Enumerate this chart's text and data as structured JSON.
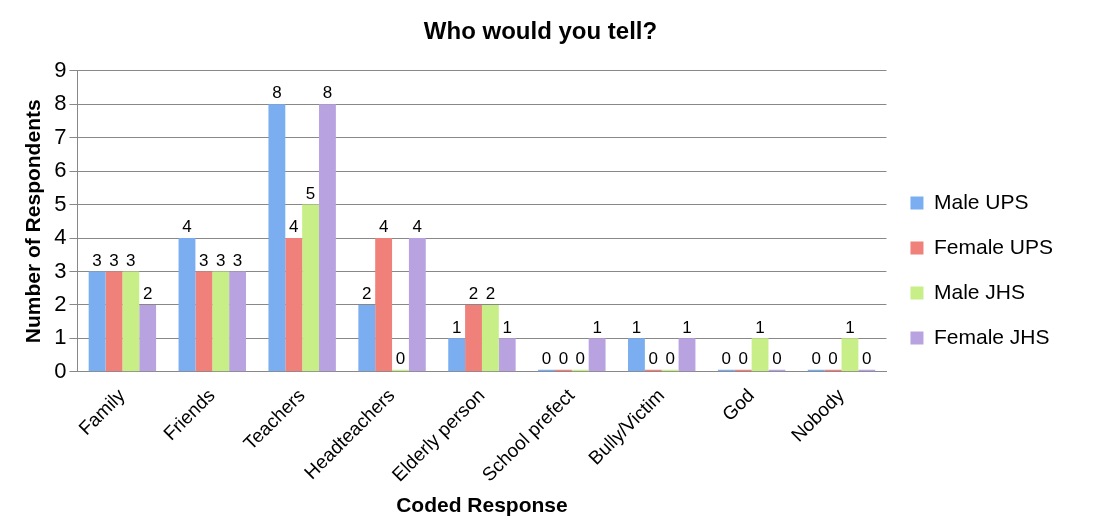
{
  "chart_data": {
    "type": "bar",
    "title": "Who would you tell?",
    "xlabel": "Coded Response",
    "ylabel": "Number of Respondents",
    "categories": [
      "Family",
      "Friends",
      "Teachers",
      "Headteachers",
      "Elderly person",
      "School prefect",
      "Bully/Victim",
      "God",
      "Nobody"
    ],
    "series": [
      {
        "name": "Male UPS",
        "color": "#7aaef0",
        "values": [
          3,
          4,
          8,
          2,
          1,
          0,
          1,
          0,
          0
        ]
      },
      {
        "name": "Female UPS",
        "color": "#f0807a",
        "values": [
          3,
          3,
          4,
          4,
          2,
          0,
          0,
          0,
          0
        ]
      },
      {
        "name": "Male JHS",
        "color": "#c8ee88",
        "values": [
          3,
          3,
          5,
          0,
          2,
          0,
          0,
          1,
          1
        ]
      },
      {
        "name": "Female JHS",
        "color": "#b8a2e0",
        "values": [
          2,
          3,
          8,
          4,
          1,
          1,
          1,
          0,
          0
        ]
      }
    ],
    "ylim": [
      0,
      9
    ],
    "yticks": [
      0,
      1,
      2,
      3,
      4,
      5,
      6,
      7,
      8,
      9
    ],
    "grid": "y",
    "legend": "right",
    "data_labels": true
  }
}
